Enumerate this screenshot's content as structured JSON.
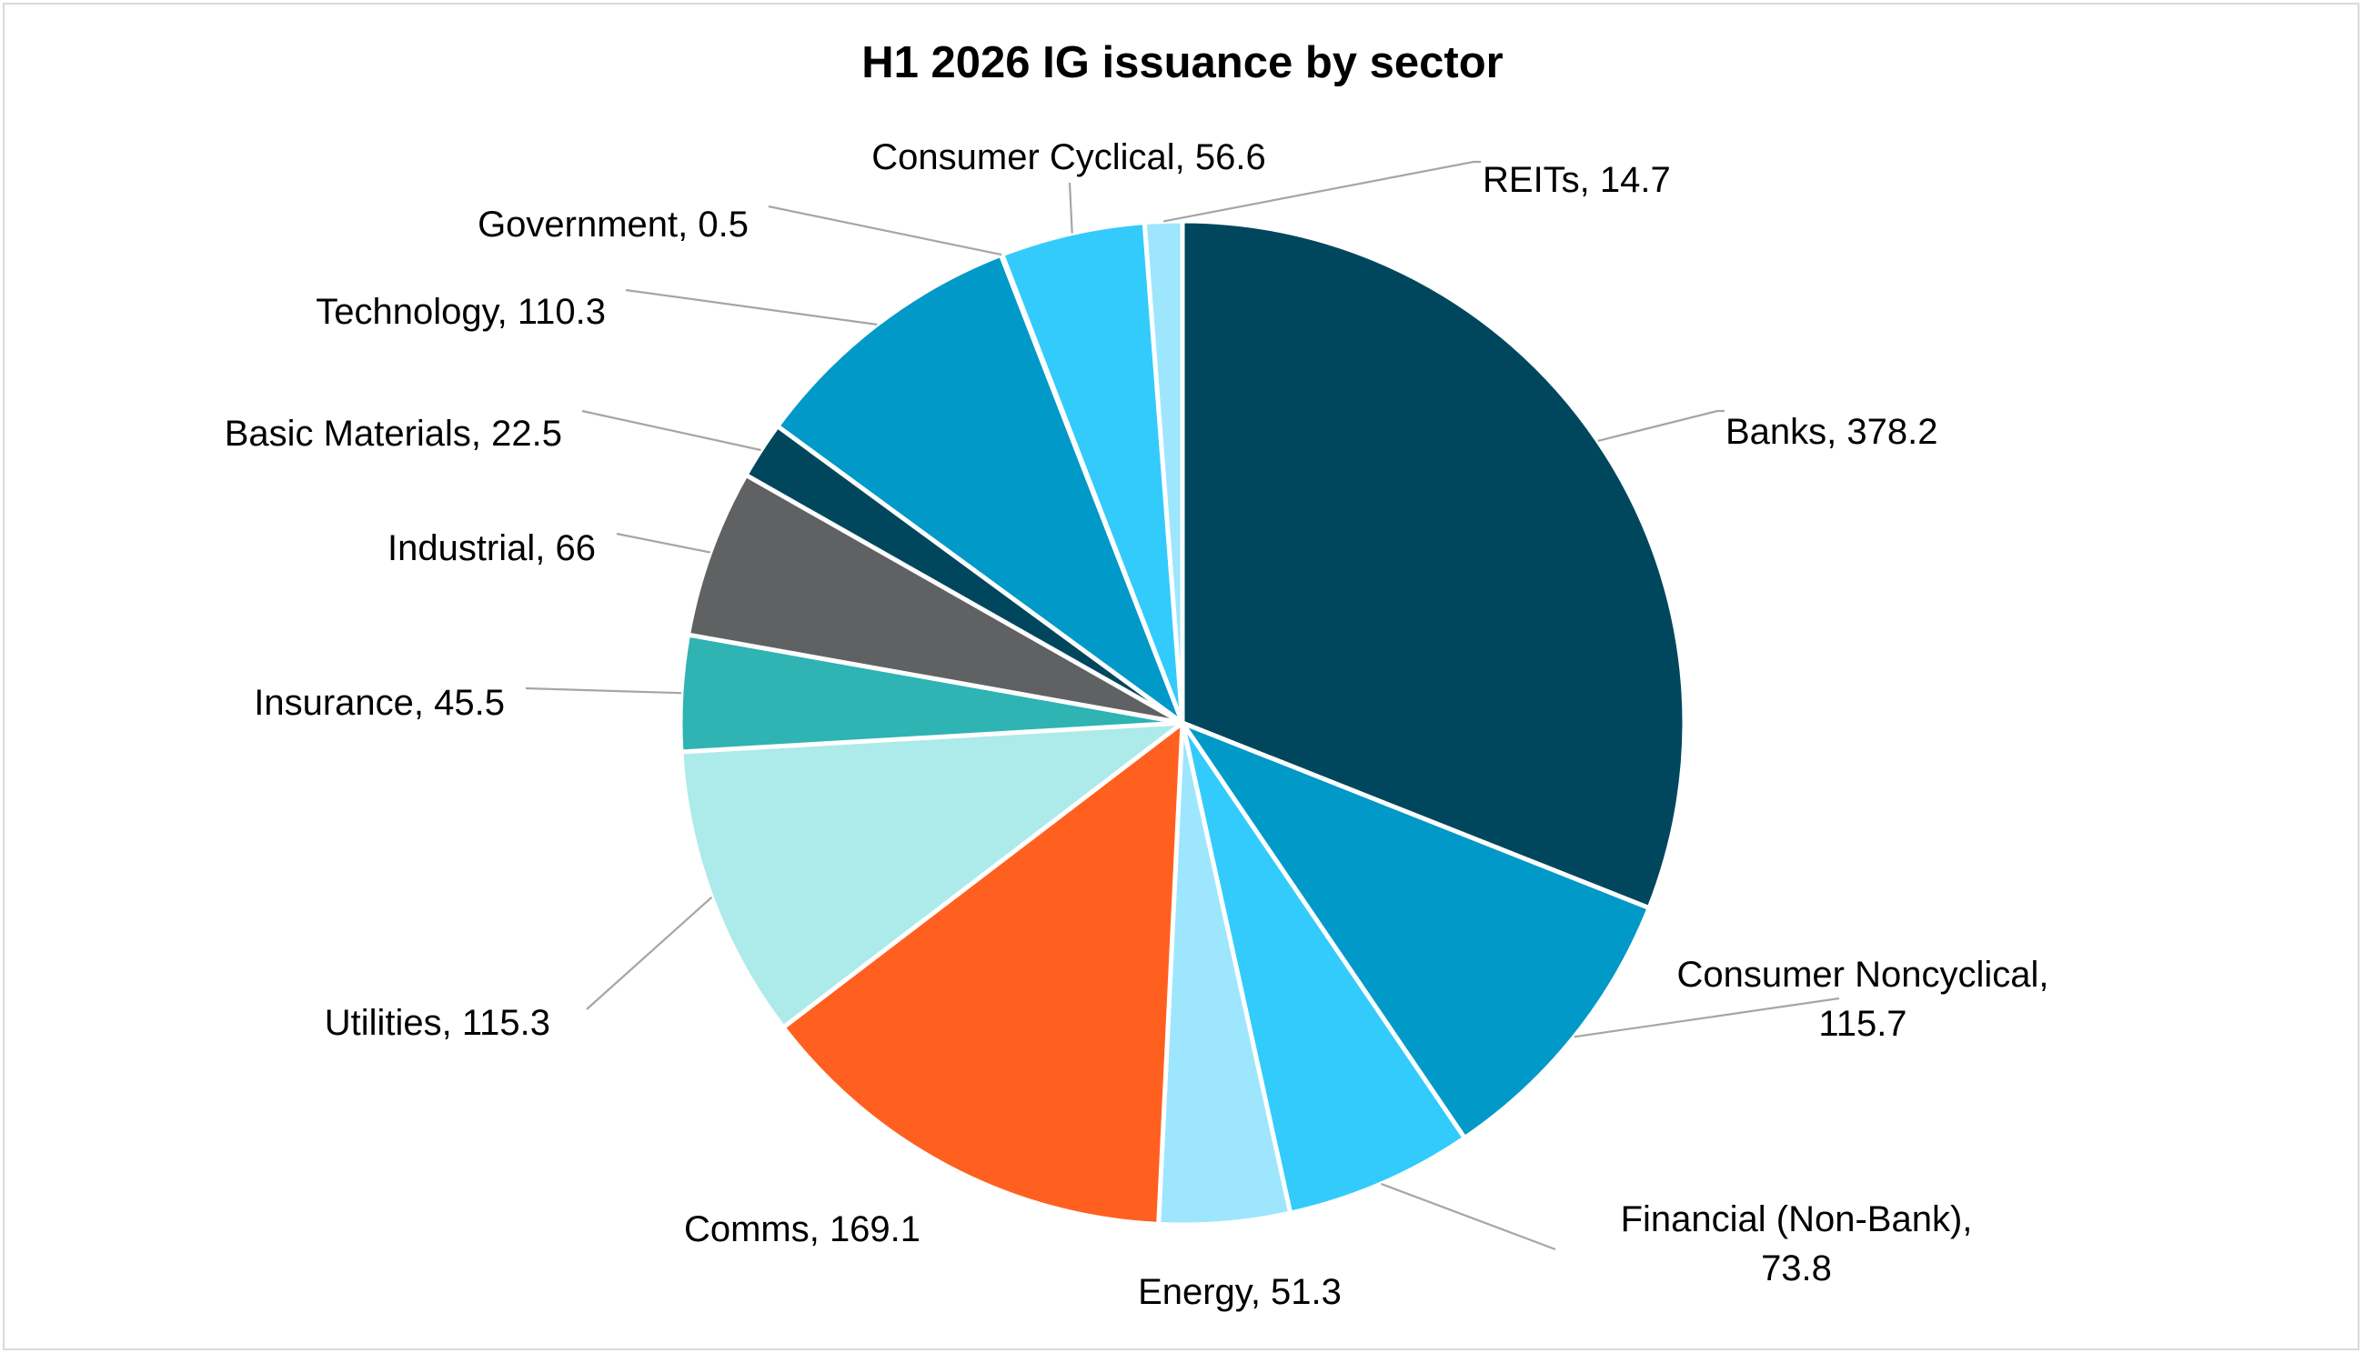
{
  "chart_data": {
    "type": "pie",
    "title": "H1 2026 IG issuance by sector",
    "legend": "none",
    "start_angle_deg": 0,
    "direction": "clockwise",
    "slices": [
      {
        "category": "Banks",
        "value": 378.2,
        "label_lines": [
          "Banks, 378.2"
        ],
        "color": "#00475e"
      },
      {
        "category": "Consumer Noncyclical",
        "value": 115.7,
        "label_lines": [
          "Consumer Noncyclical,",
          "115.7"
        ],
        "color": "#0099c8"
      },
      {
        "category": "Financial (Non-Bank)",
        "value": 73.8,
        "label_lines": [
          "Financial (Non-Bank),",
          "73.8"
        ],
        "color": "#33cbfc"
      },
      {
        "category": "Energy",
        "value": 51.3,
        "label_lines": [
          "Energy, 51.3"
        ],
        "color": "#9ee6fd"
      },
      {
        "category": "Comms",
        "value": 169.1,
        "label_lines": [
          "Comms, 169.1"
        ],
        "color": "#ff6020"
      },
      {
        "category": "Utilities",
        "value": 115.3,
        "label_lines": [
          "Utilities, 115.3"
        ],
        "color": "#adeaea"
      },
      {
        "category": "Insurance",
        "value": 45.5,
        "label_lines": [
          "Insurance, 45.5"
        ],
        "color": "#2fb3b3"
      },
      {
        "category": "Industrial",
        "value": 66,
        "label_lines": [
          "Industrial, 66"
        ],
        "color": "#606163"
      },
      {
        "category": "Basic Materials",
        "value": 22.5,
        "label_lines": [
          "Basic Materials, 22.5"
        ],
        "color": "#00475e"
      },
      {
        "category": "Technology",
        "value": 110.3,
        "label_lines": [
          "Technology, 110.3"
        ],
        "color": "#0099c8"
      },
      {
        "category": "Government",
        "value": 0.5,
        "label_lines": [
          "Government, 0.5"
        ],
        "color": "#0099c8"
      },
      {
        "category": "Consumer Cyclical",
        "value": 56.6,
        "label_lines": [
          "Consumer Cyclical, 56.6"
        ],
        "color": "#33cbfc"
      },
      {
        "category": "REITs",
        "value": 14.7,
        "label_lines": [
          "REITs, 14.7"
        ],
        "color": "#9ee6fd"
      }
    ]
  }
}
